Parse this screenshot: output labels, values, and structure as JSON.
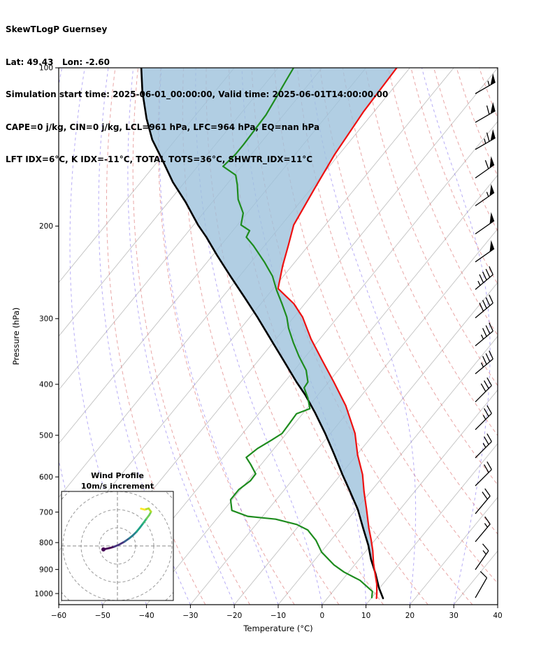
{
  "header": {
    "line1": "SkewTLogP Guernsey",
    "line2": "Lat: 49.43   Lon: -2.60",
    "line3": "Simulation start time: 2025-06-01_00:00:00, Valid time: 2025-06-01T14:00:00.00",
    "line4": "CAPE=0 j/kg, CIN=0 j/kg, LCL=961 hPa, LFC=964 hPa, EQ=nan hPa",
    "line5": "LFT IDX=6°C, K IDX=-11°C, TOTAL TOTS=36°C, SHWTR_IDX=11°C"
  },
  "axes": {
    "x_label": "Temperature (°C)",
    "y_label": "Pressure (hPa)",
    "x_ticks": [
      -60,
      -50,
      -40,
      -30,
      -20,
      -10,
      0,
      10,
      20,
      30,
      40
    ],
    "y_ticks": [
      100,
      200,
      300,
      400,
      500,
      600,
      700,
      800,
      900,
      1000
    ]
  },
  "inset": {
    "title_line1": "Wind Profile",
    "title_line2": "10m/s increment"
  },
  "chart_data": {
    "type": "line",
    "title": "SkewTLogP Guernsey",
    "xlabel": "Temperature (°C)",
    "ylabel": "Pressure (hPa)",
    "x_range_c": [
      -60,
      40
    ],
    "pressure_range_hPa": [
      100,
      1050
    ],
    "skew_deg": 45,
    "series": [
      {
        "name": "temperature",
        "color": "#ee1111",
        "pressure_hPa": [
          1021,
          1000,
          959,
          915,
          874,
          829,
          792,
          751,
          692,
          640,
          594,
          545,
          496,
          439,
          396,
          359,
          328,
          298,
          281,
          263,
          238,
          217,
          199,
          170,
          146,
          121,
          100
        ],
        "values_c": [
          11.2,
          10.4,
          8.6,
          6.2,
          3.9,
          1.5,
          -0.8,
          -3.6,
          -7.6,
          -11.5,
          -15.0,
          -19.8,
          -24.4,
          -31.7,
          -38.8,
          -45.7,
          -52.0,
          -58.0,
          -62.5,
          -68.9,
          -72.1,
          -74.7,
          -77.2,
          -79.2,
          -81.0,
          -82.4,
          -83.0
        ]
      },
      {
        "name": "dewpoint",
        "color": "#1e8c1e",
        "pressure_hPa": [
          1018,
          991,
          944,
          910,
          882,
          834,
          792,
          757,
          739,
          722,
          713,
          695,
          663,
          634,
          610,
          592,
          568,
          551,
          530,
          511,
          496,
          474,
          455,
          445,
          425,
          406,
          396,
          376,
          354,
          333,
          313,
          298,
          281,
          265,
          249,
          234,
          218,
          210,
          204,
          199,
          189,
          178,
          167,
          160,
          154,
          146,
          140,
          131,
          123,
          114,
          106,
          100
        ],
        "values_c": [
          10.0,
          9.0,
          4.1,
          -1.1,
          -4.7,
          -9.9,
          -13.4,
          -17.2,
          -20.7,
          -26.5,
          -33.4,
          -38.1,
          -40.4,
          -40.4,
          -39.4,
          -39.5,
          -42.4,
          -44.7,
          -43.8,
          -42.2,
          -41.0,
          -41.2,
          -41.4,
          -39.3,
          -41.7,
          -44.5,
          -44.7,
          -47.3,
          -51.5,
          -55.4,
          -59.1,
          -61.6,
          -65.2,
          -68.9,
          -72.5,
          -77.0,
          -82.5,
          -85.7,
          -86.2,
          -89.2,
          -90.9,
          -94.6,
          -97.5,
          -99.7,
          -104.2,
          -103.6,
          -103.6,
          -103.8,
          -104.0,
          -104.9,
          -105.8,
          -106.5
        ]
      },
      {
        "name": "parcel",
        "color": "#000000",
        "pressure_hPa": [
          1021,
          975,
          915,
          861,
          810,
          751,
          692,
          634,
          594,
          543,
          496,
          452,
          419,
          396,
          365,
          333,
          298,
          273,
          249,
          227,
          210,
          199,
          180,
          165,
          150,
          137,
          125,
          111,
          100
        ],
        "values_c": [
          12.7,
          9.8,
          6.3,
          2.7,
          -0.5,
          -4.9,
          -9.6,
          -15.3,
          -19.6,
          -25.3,
          -31.2,
          -37.5,
          -42.9,
          -47.3,
          -53.3,
          -60.1,
          -68.3,
          -75.0,
          -82.1,
          -89.1,
          -94.8,
          -99.0,
          -106.1,
          -112.7,
          -119.1,
          -125.3,
          -130.5,
          -136.5,
          -141.2
        ]
      }
    ],
    "shaded_region": {
      "between": [
        "parcel",
        "temperature"
      ],
      "color": "#9dc2dc",
      "opacity": 0.8
    },
    "winds": {
      "pressure_hPa": [
        1019,
        901,
        797,
        705,
        624,
        552,
        488,
        432,
        382,
        338,
        299,
        264,
        234,
        207,
        183,
        162,
        143,
        127,
        112,
        100
      ],
      "speed_kt": [
        10,
        15,
        15,
        20,
        20,
        25,
        25,
        30,
        35,
        35,
        40,
        45,
        50,
        50,
        55,
        60,
        65,
        60,
        55,
        50
      ],
      "direction_deg": [
        30,
        35,
        40,
        40,
        45,
        45,
        45,
        45,
        50,
        50,
        50,
        50,
        55,
        55,
        55,
        55,
        60,
        60,
        60,
        60
      ]
    },
    "background": {
      "isotherms_c": {
        "start": -120,
        "end": 40,
        "step": 10,
        "color": "#9a9a9a"
      },
      "dry_adiabats_theta_c": {
        "start": -30,
        "end": 160,
        "step": 10,
        "color": "#dd7777"
      },
      "moist_adiabats_start_c": {
        "start": -60,
        "end": 40,
        "step": 10,
        "color": "#7b68ee"
      }
    },
    "hodograph": {
      "ring_step_ms": 10,
      "u_ms": [
        -7.7,
        -4.5,
        -2.0,
        0.5,
        3.8,
        6.5,
        8.5,
        10.5,
        12.3,
        14.2,
        16.0,
        17.5,
        18.5,
        17.2,
        15.0,
        13.0
      ],
      "v_ms": [
        -1.9,
        -1.2,
        -0.5,
        0.5,
        2.3,
        4.2,
        5.8,
        7.8,
        10.0,
        12.5,
        15.0,
        17.0,
        18.8,
        20.6,
        20.0,
        20.5
      ],
      "palette": [
        "#440154",
        "#46327e",
        "#375c8d",
        "#27808e",
        "#1fa187",
        "#35b779",
        "#6ece58",
        "#b5de2b",
        "#fde725"
      ]
    }
  }
}
